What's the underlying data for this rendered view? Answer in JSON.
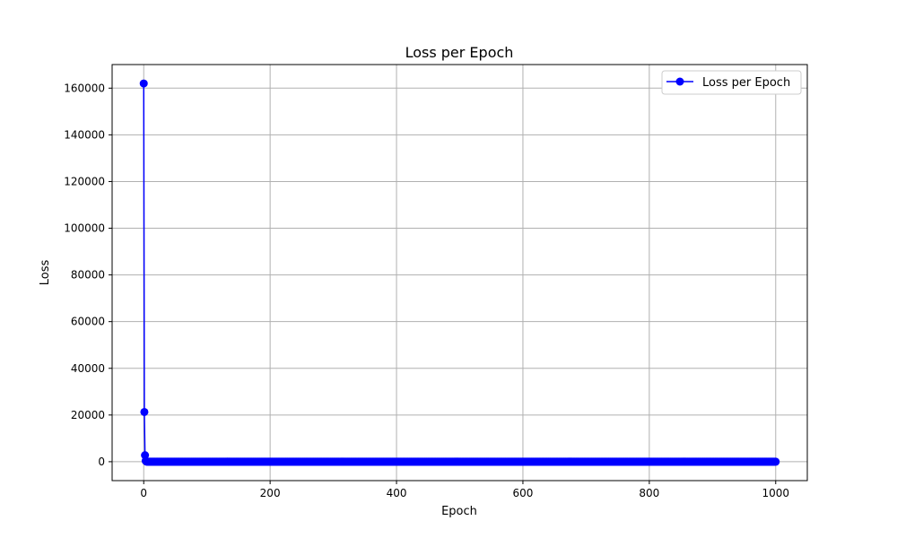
{
  "chart_data": {
    "type": "line",
    "title": "Loss per Epoch",
    "xlabel": "Epoch",
    "ylabel": "Loss",
    "xlim": [
      -50,
      1050
    ],
    "ylim": [
      -8100,
      170100
    ],
    "xticks": [
      0,
      200,
      400,
      600,
      800,
      1000
    ],
    "xtick_labels": [
      "0",
      "200",
      "400",
      "600",
      "800",
      "1000"
    ],
    "yticks": [
      0,
      20000,
      40000,
      60000,
      80000,
      100000,
      120000,
      140000,
      160000
    ],
    "ytick_labels": [
      "0",
      "20000",
      "40000",
      "60000",
      "80000",
      "100000",
      "120000",
      "140000",
      "160000"
    ],
    "grid": true,
    "legend_position": "upper right",
    "series": [
      {
        "name": "Loss per Epoch",
        "color": "#0000ff",
        "marker": "circle",
        "x_start": 0,
        "x_step": 1,
        "num_points": 1001,
        "values_head": [
          162000,
          21300,
          2800,
          400,
          60,
          10
        ],
        "values_tail_constant": 0
      }
    ]
  }
}
